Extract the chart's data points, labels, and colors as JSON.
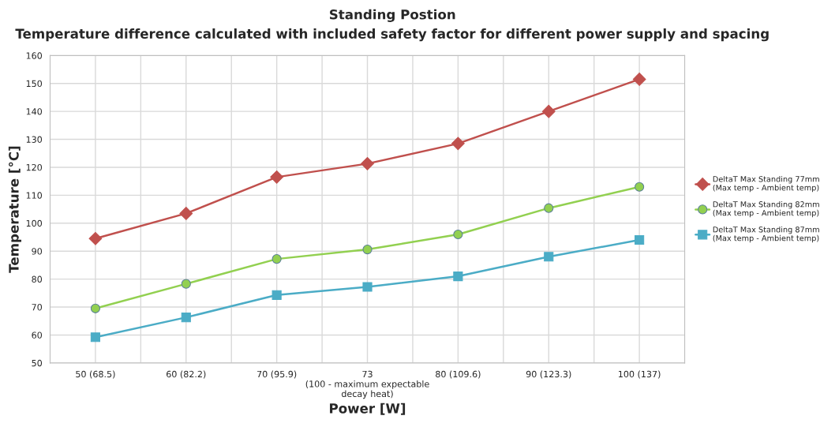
{
  "chart_data": {
    "type": "line",
    "title": "Standing Postion",
    "subtitle": "Temperature difference calculated with included safety factor for different power supply and spacing",
    "xlabel": "Power [W]",
    "ylabel": "Temperature [°C]",
    "categories": [
      "50 (68.5)",
      "60 (82.2)",
      "70 (95.9)",
      "73\n(100 - maximum expectable\ndecay heat)",
      "80 (109.6)",
      "90 (123.3)",
      "100 (137)"
    ],
    "series": [
      {
        "name": "DeltaT Max Standing 77mm\n(Max temp - Ambient temp)",
        "color": "#c0504d",
        "marker": "diamond",
        "values": [
          94.5,
          103.5,
          116.5,
          121.3,
          128.5,
          140,
          151.5
        ]
      },
      {
        "name": "DeltaT Max Standing 82mm\n(Max temp - Ambient temp)",
        "color": "#92d050",
        "marker": "circle",
        "values": [
          69.5,
          78.3,
          87.2,
          90.6,
          96,
          105.4,
          113
        ]
      },
      {
        "name": "DeltaT Max Standing 87mm\n(Max temp - Ambient temp)",
        "color": "#4bacc6",
        "marker": "square",
        "values": [
          59.2,
          66.3,
          74.3,
          77.2,
          81,
          88,
          94
        ]
      }
    ],
    "ylim": [
      50,
      160
    ],
    "yticks": [
      50,
      60,
      70,
      80,
      90,
      100,
      110,
      120,
      130,
      140,
      150,
      160
    ],
    "grid": true,
    "legend": "right",
    "line_style": "solid"
  }
}
